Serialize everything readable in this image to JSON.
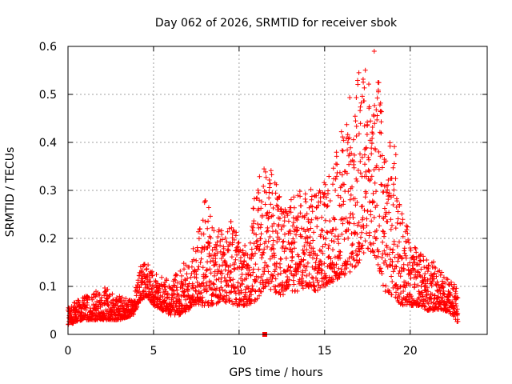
{
  "chart_data": {
    "type": "scatter",
    "title": "Day 062 of 2026, SRMTID for receiver sbok",
    "xlabel": "GPS time / hours",
    "ylabel": "SRMTID / TECUs",
    "xlim": [
      0,
      24.5
    ],
    "ylim": [
      0,
      0.6
    ],
    "x_ticks": [
      0,
      5,
      10,
      15,
      20
    ],
    "y_ticks": [
      0,
      0.1,
      0.2,
      0.3,
      0.4,
      0.5,
      0.6
    ],
    "x_tick_labels": [
      "0",
      "5",
      "10",
      "15",
      "20"
    ],
    "y_tick_labels": [
      "0",
      "0.1",
      "0.2",
      "0.3",
      "0.4",
      "0.5",
      "0.6"
    ],
    "grid": true,
    "marker": "plus",
    "series": [
      {
        "name": "SRMTID",
        "color": "#ff0000",
        "envelope_note": "dense cloud of per-epoch points; envelope below gives typical min/max per time bin",
        "t": [
          0.0,
          1.0,
          2.0,
          3.0,
          3.8,
          4.2,
          4.6,
          5.0,
          5.5,
          6.0,
          6.5,
          7.0,
          7.5,
          8.0,
          8.5,
          9.0,
          9.5,
          10.0,
          10.5,
          11.0,
          11.5,
          12.0,
          12.5,
          13.0,
          13.5,
          14.0,
          14.5,
          15.0,
          15.5,
          16.0,
          16.5,
          17.0,
          17.5,
          18.0,
          18.5,
          19.0,
          19.5,
          20.0,
          20.5,
          21.0,
          21.5,
          22.0,
          22.5,
          22.8
        ],
        "low": [
          0.02,
          0.03,
          0.03,
          0.03,
          0.04,
          0.07,
          0.08,
          0.06,
          0.05,
          0.04,
          0.04,
          0.05,
          0.06,
          0.06,
          0.06,
          0.07,
          0.06,
          0.06,
          0.06,
          0.07,
          0.1,
          0.09,
          0.08,
          0.09,
          0.09,
          0.1,
          0.09,
          0.1,
          0.11,
          0.12,
          0.13,
          0.15,
          0.18,
          0.16,
          0.09,
          0.08,
          0.06,
          0.06,
          0.06,
          0.05,
          0.05,
          0.05,
          0.04,
          0.02
        ],
        "high": [
          0.06,
          0.08,
          0.1,
          0.08,
          0.07,
          0.14,
          0.15,
          0.13,
          0.12,
          0.11,
          0.14,
          0.16,
          0.2,
          0.3,
          0.22,
          0.22,
          0.24,
          0.2,
          0.18,
          0.32,
          0.35,
          0.35,
          0.27,
          0.3,
          0.3,
          0.31,
          0.3,
          0.32,
          0.35,
          0.43,
          0.5,
          0.55,
          0.57,
          0.59,
          0.4,
          0.43,
          0.26,
          0.21,
          0.17,
          0.16,
          0.15,
          0.12,
          0.11,
          0.1
        ],
        "peak": {
          "t": 17.9,
          "value": 0.59
        },
        "approx_point_count": 2600
      }
    ],
    "special_marker": {
      "x": 11.5,
      "y": 0,
      "shape": "filled-square",
      "color": "#ff0000"
    }
  }
}
